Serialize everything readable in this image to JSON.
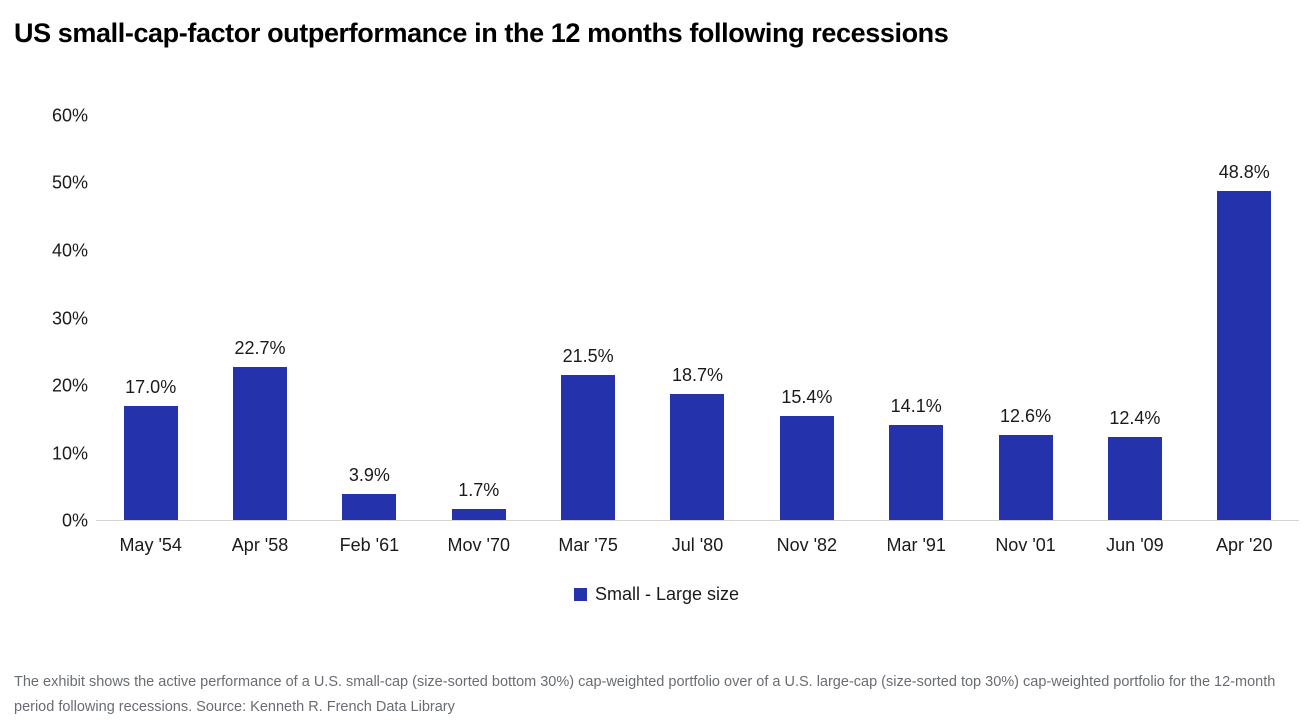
{
  "title": "US small-cap-factor outperformance in the 12 months following recessions",
  "chart_data": {
    "type": "bar",
    "title": "US small-cap-factor outperformance in the 12 months following recessions",
    "categories": [
      "May '54",
      "Apr '58",
      "Feb '61",
      "Mov '70",
      "Mar '75",
      "Jul '80",
      "Nov '82",
      "Mar '91",
      "Nov '01",
      "Jun '09",
      "Apr '20"
    ],
    "values": [
      17.0,
      22.7,
      3.9,
      1.7,
      21.5,
      18.7,
      15.4,
      14.1,
      12.6,
      12.4,
      48.8
    ],
    "value_labels": [
      "17.0%",
      "22.7%",
      "3.9%",
      "1.7%",
      "21.5%",
      "18.7%",
      "15.4%",
      "14.1%",
      "12.6%",
      "12.4%",
      "48.8%"
    ],
    "xlabel": "",
    "ylabel": "",
    "ylim": [
      0,
      60
    ],
    "yticks": [
      "60%",
      "50%",
      "40%",
      "30%",
      "20%",
      "10%",
      "0%"
    ],
    "grid": false,
    "legend_position": "bottom",
    "legend_label": "Small - Large size",
    "bar_color": "#2432ab"
  },
  "legend": {
    "label": "Small - Large size"
  },
  "footer": {
    "text": "The exhibit shows the active performance of a U.S. small-cap (size-sorted bottom 30%) cap-weighted portfolio over of a U.S. large-cap (size-sorted top 30%) cap-weighted portfolio for the 12-month period following recessions. Source: Kenneth R. French Data Library"
  },
  "colors": {
    "bar": "#2432ab",
    "axis_line": "#d4d4d4",
    "title_text": "#000000",
    "label_text": "#1a1a1a",
    "footer_text": "#696d72"
  }
}
